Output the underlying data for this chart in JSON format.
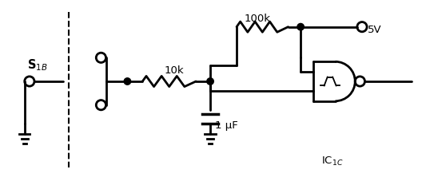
{
  "bg_color": "#ffffff",
  "line_color": "#000000",
  "lw": 2.0,
  "fig_w": 5.28,
  "fig_h": 2.37,
  "dpi": 100,
  "xlim": [
    0,
    11
  ],
  "ylim": [
    0,
    5
  ],
  "S1B_label": "S$_{1B}$",
  "resistor_10k_label": "10k",
  "resistor_100k_label": "100k",
  "cap_label": "1 µF",
  "v5_label": "5V",
  "ic_label": "IC$_{1C}$"
}
